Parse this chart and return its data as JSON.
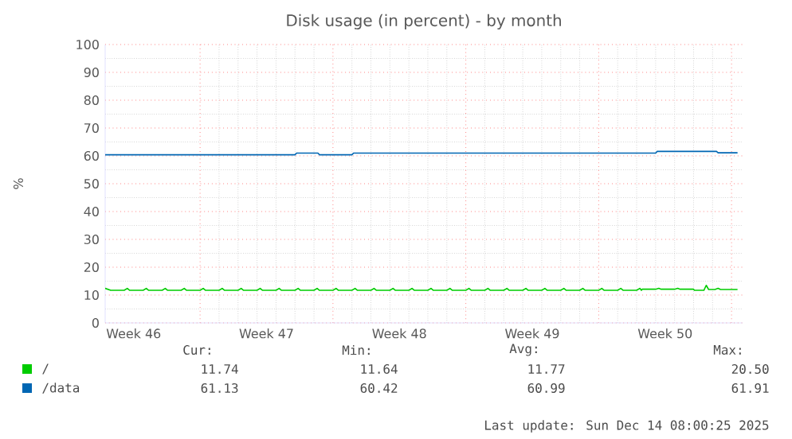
{
  "chart_data": {
    "type": "line",
    "title": "Disk usage (in percent) - by month",
    "ylabel": "%",
    "xlim": [
      "2025-11-10T00:00",
      "2025-12-13T14:00"
    ],
    "ylim": [
      0,
      100
    ],
    "xticks": [
      {
        "value": "2025-11-11T12:00",
        "label": "Week 46"
      },
      {
        "value": "2025-11-15",
        "label": null
      },
      {
        "value": "2025-11-18T12:00",
        "label": "Week 47"
      },
      {
        "value": "2025-11-22",
        "label": null
      },
      {
        "value": "2025-11-25T12:00",
        "label": "Week 48"
      },
      {
        "value": "2025-11-29",
        "label": null
      },
      {
        "value": "2025-12-02T12:00",
        "label": "Week 49"
      },
      {
        "value": "2025-12-06",
        "label": null
      },
      {
        "value": "2025-12-09T12:00",
        "label": "Week 50"
      },
      {
        "value": "2025-12-13",
        "label": null
      }
    ],
    "yticks": [
      0,
      10,
      20,
      30,
      40,
      50,
      60,
      70,
      80,
      90,
      100
    ],
    "grid": true,
    "legend": "bottom",
    "marker": "none",
    "line_style": "solid",
    "series": [
      {
        "name": "/",
        "color": "#00cc00",
        "x": [
          "2025-11-10T00:00",
          "2025-11-10T07:00",
          "2025-11-11T00:00",
          "2025-11-11T04:00",
          "2025-11-11T07:00",
          "2025-11-12T00:00",
          "2025-11-12T04:00",
          "2025-11-12T07:00",
          "2025-11-13T00:00",
          "2025-11-13T04:00",
          "2025-11-13T07:00",
          "2025-11-14T00:00",
          "2025-11-14T04:00",
          "2025-11-14T07:00",
          "2025-11-15T00:00",
          "2025-11-15T04:00",
          "2025-11-15T07:00",
          "2025-11-16T00:00",
          "2025-11-16T04:00",
          "2025-11-16T07:00",
          "2025-11-17T00:00",
          "2025-11-17T04:00",
          "2025-11-17T07:00",
          "2025-11-18T00:00",
          "2025-11-18T04:00",
          "2025-11-18T07:00",
          "2025-11-19T00:00",
          "2025-11-19T04:00",
          "2025-11-19T07:00",
          "2025-11-20T00:00",
          "2025-11-20T04:00",
          "2025-11-20T07:00",
          "2025-11-21T00:00",
          "2025-11-21T04:00",
          "2025-11-21T07:00",
          "2025-11-22T00:00",
          "2025-11-22T04:00",
          "2025-11-22T07:00",
          "2025-11-23T00:00",
          "2025-11-23T04:00",
          "2025-11-23T07:00",
          "2025-11-24T00:00",
          "2025-11-24T04:00",
          "2025-11-24T07:00",
          "2025-11-25T00:00",
          "2025-11-25T04:00",
          "2025-11-25T07:00",
          "2025-11-26T00:00",
          "2025-11-26T04:00",
          "2025-11-26T07:00",
          "2025-11-27T00:00",
          "2025-11-27T04:00",
          "2025-11-27T07:00",
          "2025-11-28T00:00",
          "2025-11-28T04:00",
          "2025-11-28T07:00",
          "2025-11-29T00:00",
          "2025-11-29T04:00",
          "2025-11-29T07:00",
          "2025-11-30T00:00",
          "2025-11-30T04:00",
          "2025-11-30T07:00",
          "2025-12-01T00:00",
          "2025-12-01T04:00",
          "2025-12-01T07:00",
          "2025-12-02T00:00",
          "2025-12-02T04:00",
          "2025-12-02T07:00",
          "2025-12-03T00:00",
          "2025-12-03T04:00",
          "2025-12-03T07:00",
          "2025-12-04T00:00",
          "2025-12-04T04:00",
          "2025-12-04T07:00",
          "2025-12-05T00:00",
          "2025-12-05T04:00",
          "2025-12-05T07:00",
          "2025-12-06T00:00",
          "2025-12-06T04:00",
          "2025-12-06T07:00",
          "2025-12-07T00:00",
          "2025-12-07T04:00",
          "2025-12-07T07:00",
          "2025-12-08T00:00",
          "2025-12-08T04:00",
          "2025-12-08T06:00",
          "2025-12-08T07:00",
          "2025-12-09T00:00",
          "2025-12-09T04:00",
          "2025-12-09T07:00",
          "2025-12-10T00:00",
          "2025-12-10T04:00",
          "2025-12-10T07:00",
          "2025-12-11T00:00",
          "2025-12-11T01:00",
          "2025-12-11T13:00",
          "2025-12-11T16:00",
          "2025-12-11T19:00",
          "2025-12-12T03:00",
          "2025-12-12T07:00",
          "2025-12-12T10:00",
          "2025-12-13T07:00"
        ],
        "values": [
          12.4,
          11.7,
          11.7,
          12.4,
          11.7,
          11.7,
          12.4,
          11.7,
          11.7,
          12.4,
          11.7,
          11.7,
          12.4,
          11.7,
          11.7,
          12.4,
          11.7,
          11.7,
          12.4,
          11.7,
          11.7,
          12.4,
          11.7,
          11.7,
          12.4,
          11.7,
          11.7,
          12.4,
          11.7,
          11.7,
          12.4,
          11.7,
          11.7,
          12.4,
          11.7,
          11.7,
          12.4,
          11.7,
          11.7,
          12.4,
          11.7,
          11.7,
          12.4,
          11.7,
          11.7,
          12.4,
          11.7,
          11.7,
          12.4,
          11.7,
          11.7,
          12.4,
          11.7,
          11.7,
          12.4,
          11.7,
          11.7,
          12.4,
          11.7,
          11.7,
          12.4,
          11.7,
          11.7,
          12.4,
          11.7,
          11.7,
          12.4,
          11.7,
          11.7,
          12.4,
          11.7,
          11.7,
          12.4,
          11.7,
          11.7,
          12.4,
          11.7,
          11.7,
          12.4,
          11.7,
          11.7,
          12.4,
          11.7,
          11.7,
          12.4,
          11.7,
          12.1,
          12.1,
          12.4,
          12.1,
          12.1,
          12.4,
          12.1,
          12.1,
          11.7,
          11.7,
          13.5,
          12.0,
          12.0,
          12.4,
          12.0,
          12.0
        ]
      },
      {
        "name": "/data",
        "color": "#0066b3",
        "x": [
          "2025-11-10T00:00",
          "2025-11-20T00:00",
          "2025-11-20T02:00",
          "2025-11-21T05:00",
          "2025-11-21T07:00",
          "2025-11-23T00:00",
          "2025-11-23T02:00",
          "2025-12-09T00:00",
          "2025-12-09T02:00",
          "2025-12-12T05:00",
          "2025-12-12T07:00",
          "2025-12-13T07:00"
        ],
        "values": [
          60.4,
          60.4,
          61.0,
          61.0,
          60.4,
          60.4,
          61.0,
          61.0,
          61.6,
          61.6,
          61.1,
          61.1
        ]
      }
    ],
    "annotations": [
      "Cur:",
      "Min:",
      "Avg:",
      "Max:",
      "11.74",
      "11.64",
      "11.77",
      "20.50",
      "61.13",
      "60.42",
      "60.99",
      "61.91",
      "Last update: Sun Dec 14 08:00:25 2025"
    ]
  }
}
